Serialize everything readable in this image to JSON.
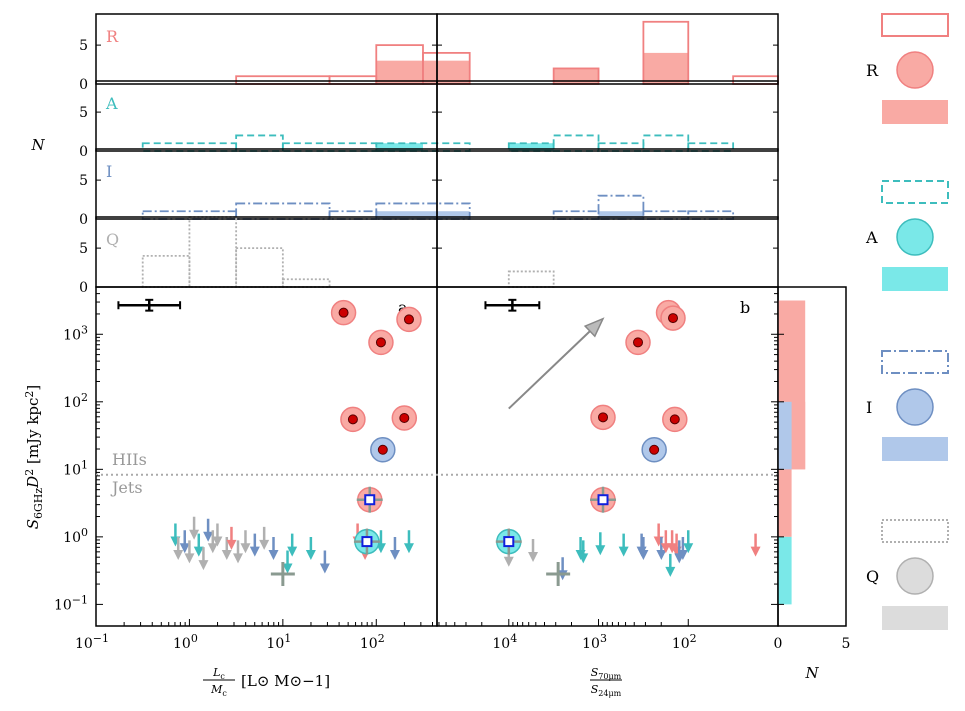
{
  "chart_data": {
    "type": "scatter",
    "colors": {
      "R": "#f08080",
      "R_fill": "#f9aaa4",
      "A": "#3dbdbd",
      "A_fill": "#7ae8e8",
      "I": "#6e8fc2",
      "I_fill": "#b0c8ea",
      "Q": "#b0b0b0",
      "Q_fill": "#dcdcdc",
      "marker": "#cc0000",
      "sq": "#1020dd"
    },
    "texts": {
      "ylabel_main": "S6GHz D2 [mJy kpc2]",
      "ylabel_hist": "N",
      "xlabel_a": "Lc/Mc [L⊙ M⊙−1]",
      "xlabel_b": "S70μm/S24μm",
      "xlabel_c": "N",
      "panel_a": "a",
      "panel_b": "b",
      "hiis": "HIIs",
      "jets": "Jets",
      "row_labels": [
        "R",
        "A",
        "I",
        "Q"
      ],
      "hist_yticks": [
        "0",
        "5"
      ],
      "right_xticks": [
        "0",
        "5"
      ],
      "legend_labels": [
        "R",
        "A",
        "I",
        "Q"
      ],
      "xticks_a": [
        "10−1",
        "100",
        "101",
        "102"
      ],
      "xticks_b": [
        "104",
        "103",
        "102"
      ],
      "yticks_main": [
        "10−1",
        "100",
        "101",
        "102",
        "103"
      ]
    },
    "axes": {
      "main_y_log_range": [
        -1.32,
        3.7
      ],
      "a_x_log_range": [
        -1,
        2.65
      ],
      "b_x_log_range": [
        4.8,
        1.0
      ],
      "hist_y_range": [
        0,
        9
      ],
      "right_x_range": [
        0,
        5
      ],
      "threshold_y": 8.3
    },
    "hist_a": {
      "R": {
        "outline": [
          [
            0.5,
            1.5,
            1
          ],
          [
            1.5,
            2.0,
            1
          ],
          [
            2.0,
            2.5,
            5
          ],
          [
            2.5,
            3.0,
            4
          ]
        ],
        "fill": [
          [
            2.0,
            2.5,
            3
          ],
          [
            2.5,
            3.0,
            3
          ]
        ]
      },
      "A": {
        "outline": [
          [
            -0.5,
            0.5,
            1
          ],
          [
            0.5,
            1.0,
            2
          ],
          [
            1.0,
            2.0,
            1
          ],
          [
            2.0,
            3.0,
            1
          ]
        ],
        "fill": [
          [
            2.0,
            2.5,
            1
          ]
        ]
      },
      "I": {
        "outline": [
          [
            -0.5,
            0.5,
            1
          ],
          [
            0.5,
            1.5,
            2
          ],
          [
            1.5,
            2.0,
            1
          ],
          [
            2.0,
            3.0,
            2
          ]
        ],
        "fill": [
          [
            2.0,
            3.0,
            1
          ]
        ]
      },
      "Q": {
        "outline": [
          [
            -0.5,
            0.0,
            4
          ],
          [
            0.0,
            0.5,
            9
          ],
          [
            0.5,
            1.0,
            5
          ],
          [
            1.0,
            1.5,
            1
          ]
        ],
        "fill": []
      }
    },
    "hist_b": {
      "R": {
        "outline": [
          [
            3.5,
            3.0,
            2
          ],
          [
            2.5,
            2.0,
            8
          ],
          [
            1.0,
            1.5,
            1
          ]
        ],
        "fill": [
          [
            3.5,
            3.0,
            2
          ],
          [
            2.5,
            2.0,
            4
          ]
        ]
      },
      "A": {
        "outline": [
          [
            4.0,
            3.5,
            1
          ],
          [
            3.5,
            3.0,
            2
          ],
          [
            3.0,
            2.5,
            1
          ],
          [
            2.5,
            2.0,
            2
          ],
          [
            2.0,
            1.5,
            1
          ]
        ],
        "fill": [
          [
            4.0,
            3.5,
            1
          ]
        ]
      },
      "I": {
        "outline": [
          [
            3.5,
            3.0,
            1
          ],
          [
            3.0,
            2.5,
            3
          ],
          [
            2.5,
            2.0,
            1
          ],
          [
            2.0,
            1.5,
            1
          ]
        ],
        "fill": [
          [
            3.0,
            2.5,
            1
          ]
        ]
      },
      "Q": {
        "outline": [
          [
            4.0,
            3.5,
            2
          ]
        ],
        "fill": []
      }
    },
    "right_hist": {
      "R": [
        [
          1.0,
          3.5,
          2
        ],
        [
          1.0,
          2.0,
          2
        ],
        [
          0.0,
          1.0,
          1
        ]
      ],
      "I": [
        [
          1.0,
          2.0,
          1
        ]
      ],
      "A": [
        [
          -1.0,
          0.0,
          1
        ]
      ]
    },
    "points_a": [
      {
        "x": 1.65,
        "y": 3.32,
        "cls": "R"
      },
      {
        "x": 2.35,
        "y": 3.22,
        "cls": "R"
      },
      {
        "x": 2.05,
        "y": 2.88,
        "cls": "R"
      },
      {
        "x": 1.75,
        "y": 1.74,
        "cls": "R"
      },
      {
        "x": 2.3,
        "y": 1.76,
        "cls": "R"
      },
      {
        "x": 2.07,
        "y": 1.29,
        "cls": "I"
      },
      {
        "x": 1.93,
        "y": 0.55,
        "cls": "R",
        "sq": true,
        "cross": true
      },
      {
        "x": 1.9,
        "y": -0.07,
        "cls": "A",
        "sq": true,
        "cross": true
      }
    ],
    "points_b": [
      {
        "x": 2.22,
        "y": 3.32,
        "cls": "R"
      },
      {
        "x": 2.17,
        "y": 3.24,
        "cls": "R"
      },
      {
        "x": 2.56,
        "y": 2.88,
        "cls": "R"
      },
      {
        "x": 2.95,
        "y": 1.77,
        "cls": "R"
      },
      {
        "x": 2.15,
        "y": 1.74,
        "cls": "R"
      },
      {
        "x": 2.38,
        "y": 1.29,
        "cls": "I"
      },
      {
        "x": 2.95,
        "y": 0.55,
        "cls": "R",
        "sq": true,
        "cross": true
      },
      {
        "x": 4.0,
        "y": -0.07,
        "cls": "A",
        "sq": true,
        "cross": true
      }
    ],
    "upper_limits_a": [
      {
        "x": -0.15,
        "y": 0.05,
        "cls": "A"
      },
      {
        "x": -0.12,
        "y": -0.15,
        "cls": "Q"
      },
      {
        "x": -0.05,
        "y": -0.05,
        "cls": "I"
      },
      {
        "x": 0.0,
        "y": -0.2,
        "cls": "Q"
      },
      {
        "x": 0.05,
        "y": 0.15,
        "cls": "Q"
      },
      {
        "x": 0.1,
        "y": -0.1,
        "cls": "A"
      },
      {
        "x": 0.15,
        "y": -0.3,
        "cls": "Q"
      },
      {
        "x": 0.2,
        "y": 0.12,
        "cls": "I"
      },
      {
        "x": 0.25,
        "y": -0.05,
        "cls": "Q"
      },
      {
        "x": 0.3,
        "y": 0.05,
        "cls": "Q"
      },
      {
        "x": 0.4,
        "y": -0.15,
        "cls": "Q"
      },
      {
        "x": 0.45,
        "y": 0.0,
        "cls": "R"
      },
      {
        "x": 0.52,
        "y": -0.2,
        "cls": "Q"
      },
      {
        "x": 0.6,
        "y": -0.05,
        "cls": "Q"
      },
      {
        "x": 0.7,
        "y": -0.1,
        "cls": "I"
      },
      {
        "x": 0.8,
        "y": 0.0,
        "cls": "Q"
      },
      {
        "x": 0.9,
        "y": -0.15,
        "cls": "I"
      },
      {
        "x": 1.05,
        "y": -0.35,
        "cls": "A"
      },
      {
        "x": 1.1,
        "y": -0.1,
        "cls": "A"
      },
      {
        "x": 1.3,
        "y": -0.15,
        "cls": "A"
      },
      {
        "x": 1.45,
        "y": -0.35,
        "cls": "I"
      },
      {
        "x": 1.8,
        "y": 0.05,
        "cls": "R"
      },
      {
        "x": 2.05,
        "y": -0.05,
        "cls": "A"
      },
      {
        "x": 2.2,
        "y": -0.15,
        "cls": "I"
      },
      {
        "x": 2.35,
        "y": -0.05,
        "cls": "A"
      },
      {
        "x": 1.88,
        "y": -0.15,
        "cls": "R"
      }
    ],
    "upper_limits_b": [
      {
        "x": 4.0,
        "y": -0.25,
        "cls": "Q"
      },
      {
        "x": 3.73,
        "y": -0.18,
        "cls": "Q"
      },
      {
        "x": 3.4,
        "y": -0.45,
        "cls": "I"
      },
      {
        "x": 3.2,
        "y": -0.15,
        "cls": "A"
      },
      {
        "x": 3.17,
        "y": -0.2,
        "cls": "A"
      },
      {
        "x": 2.98,
        "y": -0.08,
        "cls": "A"
      },
      {
        "x": 2.72,
        "y": -0.1,
        "cls": "A"
      },
      {
        "x": 2.52,
        "y": -0.1,
        "cls": "I"
      },
      {
        "x": 2.5,
        "y": -0.15,
        "cls": "I"
      },
      {
        "x": 2.33,
        "y": 0.05,
        "cls": "R"
      },
      {
        "x": 2.3,
        "y": -0.15,
        "cls": "I"
      },
      {
        "x": 2.25,
        "y": -0.05,
        "cls": "R"
      },
      {
        "x": 2.2,
        "y": -0.4,
        "cls": "A"
      },
      {
        "x": 2.18,
        "y": -0.05,
        "cls": "R"
      },
      {
        "x": 2.13,
        "y": -0.1,
        "cls": "R"
      },
      {
        "x": 2.1,
        "y": -0.2,
        "cls": "I"
      },
      {
        "x": 2.06,
        "y": -0.15,
        "cls": "I"
      },
      {
        "x": 2.0,
        "y": -0.05,
        "cls": "A"
      },
      {
        "x": 1.25,
        "y": -0.1,
        "cls": "R"
      }
    ],
    "grey_crosses": [
      {
        "panel": "a",
        "x": 1.0,
        "y": -0.55
      },
      {
        "panel": "b",
        "x": 3.45,
        "y": -0.55
      }
    ],
    "error_bars": [
      {
        "panel": "a",
        "x": -0.43,
        "y": 3.43,
        "xerr": 0.33,
        "yerr": 0.08
      },
      {
        "panel": "b",
        "x": 3.96,
        "y": 3.43,
        "xerr": 0.3,
        "yerr": 0.08
      }
    ],
    "arrow": {
      "from": {
        "x": 4.0,
        "y": 1.9
      },
      "to": {
        "x": 2.95,
        "y": 3.23
      }
    }
  }
}
